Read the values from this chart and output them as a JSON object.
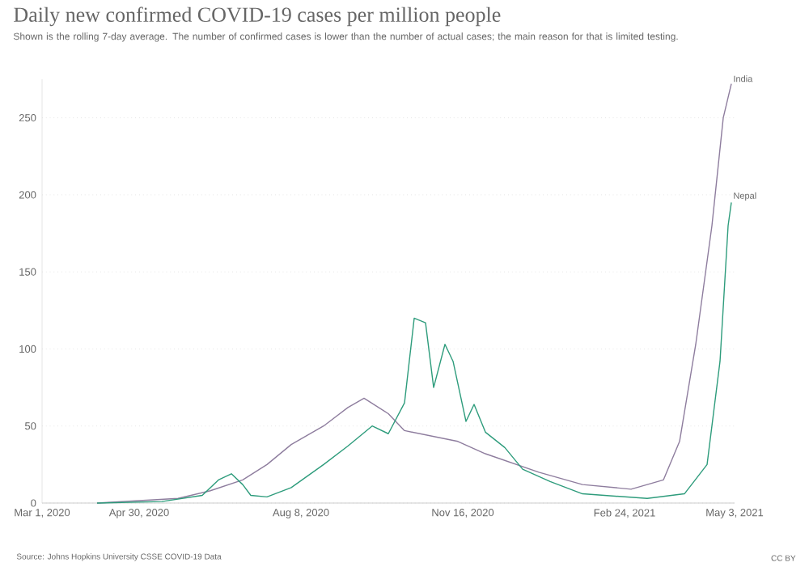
{
  "chart_data": {
    "type": "line",
    "title": "Daily new confirmed COVID-19 cases per million people",
    "subtitle": "Shown is the rolling 7-day average. The number of confirmed cases is lower than the number of actual cases; the main reason for that is limited testing.",
    "annotations": [
      "Source: Johns Hopkins University CSSE COVID-19 Data",
      "CC BY"
    ],
    "xlim": [
      "2020-03-01",
      "2021-05-03"
    ],
    "xticks": [
      {
        "value": "2020-03-01",
        "label": "Mar 1, 2020"
      },
      {
        "value": "2020-04-30",
        "label": "Apr 30, 2020"
      },
      {
        "value": "2020-08-08",
        "label": "Aug 8, 2020"
      },
      {
        "value": "2020-11-16",
        "label": "Nov 16, 2020"
      },
      {
        "value": "2021-02-24",
        "label": "Feb 24, 2021"
      },
      {
        "value": "2021-05-03",
        "label": "May 3, 2021"
      }
    ],
    "ylim": [
      0,
      275
    ],
    "yticks": [
      0,
      50,
      100,
      150,
      200,
      250
    ],
    "grid": "y",
    "legend": false,
    "marker": "none",
    "line_style": "solid",
    "series": [
      {
        "name": "India",
        "color": "#8e7d9e",
        "x": [
          "2020-04-04",
          "2020-05-24",
          "2020-06-13",
          "2020-07-03",
          "2020-07-18",
          "2020-08-02",
          "2020-08-22",
          "2020-09-06",
          "2020-09-16",
          "2020-10-01",
          "2020-10-11",
          "2020-11-13",
          "2020-11-30",
          "2021-01-02",
          "2021-01-29",
          "2021-02-28",
          "2021-03-20",
          "2021-03-30",
          "2021-04-09",
          "2021-04-19",
          "2021-04-26",
          "2021-05-01"
        ],
        "values": [
          0,
          3,
          8,
          15,
          25,
          38,
          50,
          62,
          68,
          58,
          47,
          40,
          32,
          20,
          12,
          9,
          15,
          40,
          103,
          180,
          250,
          272
        ]
      },
      {
        "name": "Nepal",
        "color": "#2e9c7c",
        "x": [
          "2020-04-04",
          "2020-05-14",
          "2020-06-08",
          "2020-06-18",
          "2020-06-26",
          "2020-07-03",
          "2020-07-08",
          "2020-07-18",
          "2020-08-02",
          "2020-08-22",
          "2020-09-06",
          "2020-09-21",
          "2020-10-01",
          "2020-10-11",
          "2020-10-17",
          "2020-10-24",
          "2020-10-29",
          "2020-11-05",
          "2020-11-10",
          "2020-11-18",
          "2020-11-23",
          "2020-11-30",
          "2020-12-12",
          "2020-12-23",
          "2021-01-09",
          "2021-01-29",
          "2021-03-10",
          "2021-04-02",
          "2021-04-16",
          "2021-04-24",
          "2021-04-29",
          "2021-05-01"
        ],
        "values": [
          0,
          1,
          5,
          15,
          19,
          12,
          5,
          4,
          10,
          25,
          37,
          50,
          45,
          65,
          120,
          117,
          75,
          103,
          92,
          53,
          64,
          46,
          36,
          22,
          14,
          6,
          3,
          6,
          25,
          92,
          180,
          195
        ]
      }
    ]
  }
}
